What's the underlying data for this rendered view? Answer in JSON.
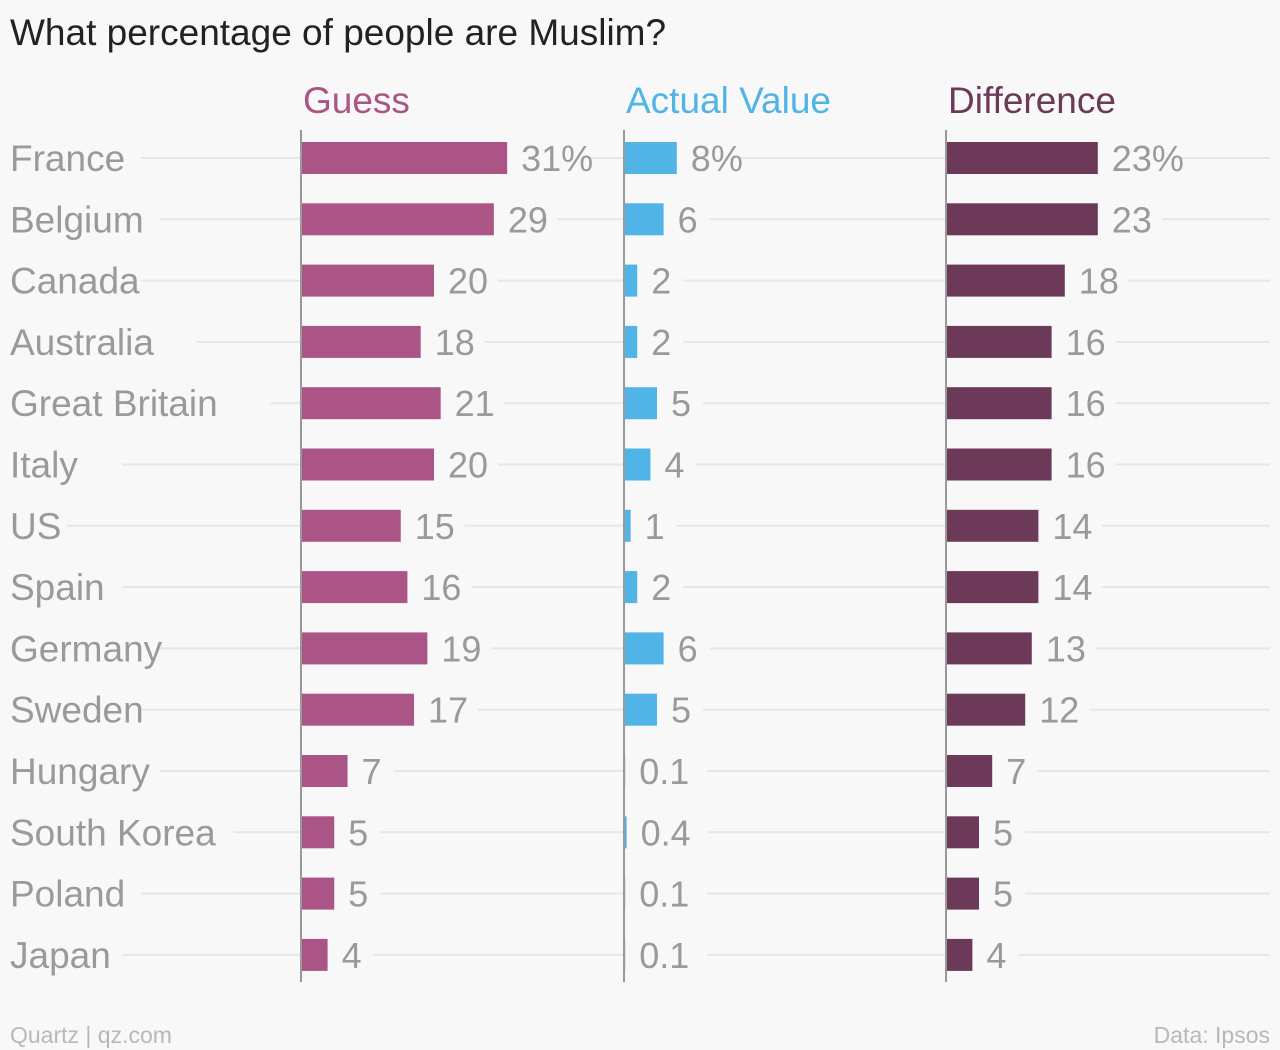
{
  "title": "What percentage of people are Muslim?",
  "footer": {
    "credit": "Quartz | qz.com",
    "source": "Data: Ipsos"
  },
  "colors": {
    "guess": "#aa5585",
    "actual": "#50b4e6",
    "difference": "#6c3a58",
    "label": "#9a9a9a",
    "grid": "#e6e6e6",
    "axis": "#999999"
  },
  "chart_data": {
    "type": "bar",
    "orientation": "horizontal",
    "title": "What percentage of people are Muslim?",
    "unit": "%",
    "categories": [
      "France",
      "Belgium",
      "Canada",
      "Australia",
      "Great Britain",
      "Italy",
      "US",
      "Spain",
      "Germany",
      "Sweden",
      "Hungary",
      "South Korea",
      "Poland",
      "Japan"
    ],
    "series": [
      {
        "name": "Guess",
        "values": [
          31,
          29,
          20,
          18,
          21,
          20,
          15,
          16,
          19,
          17,
          7,
          5,
          5,
          4
        ],
        "labels": [
          "31%",
          "29",
          "20",
          "18",
          "21",
          "20",
          "15",
          "16",
          "19",
          "17",
          "7",
          "5",
          "5",
          "4"
        ]
      },
      {
        "name": "Actual Value",
        "values": [
          8,
          6,
          2,
          2,
          5,
          4,
          1,
          2,
          6,
          5,
          0.1,
          0.4,
          0.1,
          0.1
        ],
        "labels": [
          "8%",
          "6",
          "2",
          "2",
          "5",
          "4",
          "1",
          "2",
          "6",
          "5",
          "0.1",
          "0.4",
          "0.1",
          "0.1"
        ]
      },
      {
        "name": "Difference",
        "values": [
          23,
          23,
          18,
          16,
          16,
          16,
          14,
          14,
          13,
          12,
          7,
          5,
          5,
          4
        ],
        "labels": [
          "23%",
          "23",
          "18",
          "16",
          "16",
          "16",
          "14",
          "14",
          "13",
          "12",
          "7",
          "5",
          "5",
          "4"
        ]
      }
    ],
    "grid": true,
    "legend": "column headers"
  }
}
